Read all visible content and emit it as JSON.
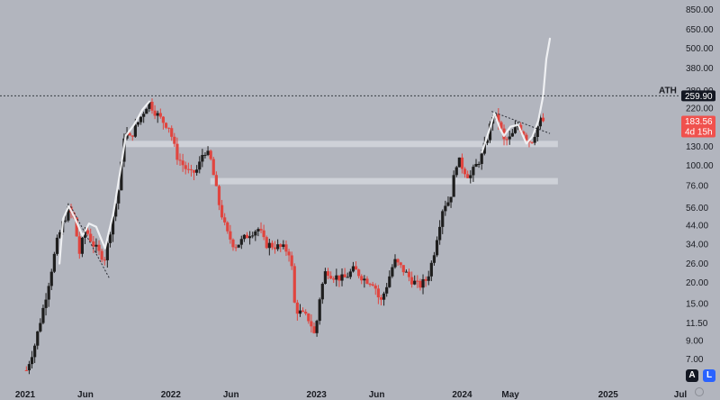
{
  "chart_data": {
    "type": "candlestick",
    "scale": "log",
    "ylim": [
      5.5,
      900
    ],
    "y_ticks": [
      "850.00",
      "650.00",
      "500.00",
      "380.00",
      "280.00",
      "220.00",
      "170.00",
      "130.00",
      "100.00",
      "76.00",
      "56.00",
      "44.00",
      "34.00",
      "26.00",
      "20.00",
      "15.00",
      "11.50",
      "9.00",
      "7.00"
    ],
    "x_ticks": [
      "2021",
      "Jun",
      "2022",
      "Jun",
      "2023",
      "Jun",
      "2024",
      "May",
      "2025",
      "Jul"
    ],
    "ath_label": "ATH",
    "ath_price": "259.90",
    "current_price": "183.56",
    "countdown": "4d 15h",
    "colors": {
      "up": "#1e1e1e",
      "down": "#e0453f",
      "background": "#b2b5be",
      "zone": "#ced1d8",
      "projection": "#f2f3f5",
      "price_tag": "#f0514d"
    },
    "ohlc_path": [
      [
        "2021-01-04",
        6.0
      ],
      [
        "2021-01-25",
        8.5
      ],
      [
        "2021-02-15",
        14
      ],
      [
        "2021-03-01",
        20
      ],
      [
        "2021-03-22",
        35
      ],
      [
        "2021-04-05",
        45
      ],
      [
        "2021-04-20",
        55
      ],
      [
        "2021-05-03",
        48
      ],
      [
        "2021-05-17",
        30
      ],
      [
        "2021-06-01",
        42
      ],
      [
        "2021-06-20",
        34
      ],
      [
        "2021-07-05",
        30
      ],
      [
        "2021-07-20",
        28
      ],
      [
        "2021-08-05",
        45
      ],
      [
        "2021-08-25",
        75
      ],
      [
        "2021-09-07",
        160
      ],
      [
        "2021-09-20",
        145
      ],
      [
        "2021-10-05",
        170
      ],
      [
        "2021-10-25",
        210
      ],
      [
        "2021-11-06",
        240
      ],
      [
        "2021-11-25",
        205
      ],
      [
        "2021-12-10",
        185
      ],
      [
        "2021-12-28",
        170
      ],
      [
        "2022-01-15",
        115
      ],
      [
        "2022-02-01",
        100
      ],
      [
        "2022-02-20",
        88
      ],
      [
        "2022-03-10",
        95
      ],
      [
        "2022-03-25",
        125
      ],
      [
        "2022-04-10",
        110
      ],
      [
        "2022-05-01",
        60
      ],
      [
        "2022-05-20",
        40
      ],
      [
        "2022-06-10",
        33
      ],
      [
        "2022-06-25",
        35
      ],
      [
        "2022-07-20",
        40
      ],
      [
        "2022-08-10",
        42
      ],
      [
        "2022-08-25",
        34
      ],
      [
        "2022-09-20",
        33
      ],
      [
        "2022-10-10",
        32
      ],
      [
        "2022-10-28",
        30
      ],
      [
        "2022-11-08",
        14
      ],
      [
        "2022-11-25",
        13
      ],
      [
        "2022-12-15",
        12
      ],
      [
        "2022-12-28",
        9.5
      ],
      [
        "2023-01-10",
        17
      ],
      [
        "2023-01-25",
        24
      ],
      [
        "2023-02-10",
        22
      ],
      [
        "2023-03-10",
        21
      ],
      [
        "2023-04-05",
        24
      ],
      [
        "2023-05-01",
        21
      ],
      [
        "2023-05-25",
        20
      ],
      [
        "2023-06-10",
        15
      ],
      [
        "2023-06-25",
        19
      ],
      [
        "2023-07-15",
        27
      ],
      [
        "2023-08-05",
        24
      ],
      [
        "2023-08-25",
        21
      ],
      [
        "2023-09-15",
        19
      ],
      [
        "2023-10-05",
        21
      ],
      [
        "2023-10-20",
        28
      ],
      [
        "2023-11-01",
        40
      ],
      [
        "2023-11-15",
        58
      ],
      [
        "2023-12-01",
        62
      ],
      [
        "2023-12-20",
        110
      ],
      [
        "2024-01-05",
        95
      ],
      [
        "2024-01-20",
        85
      ],
      [
        "2024-02-05",
        100
      ],
      [
        "2024-02-20",
        115
      ],
      [
        "2024-03-05",
        150
      ],
      [
        "2024-03-18",
        200
      ],
      [
        "2024-04-01",
        185
      ],
      [
        "2024-04-15",
        140
      ],
      [
        "2024-05-01",
        145
      ],
      [
        "2024-05-20",
        175
      ],
      [
        "2024-06-01",
        160
      ],
      [
        "2024-06-15",
        140
      ],
      [
        "2024-06-25",
        142
      ],
      [
        "2024-07-05",
        165
      ],
      [
        "2024-07-15",
        185
      ],
      [
        "2024-07-22",
        183.56
      ]
    ],
    "horizontal_zones": [
      {
        "price": 135,
        "from": "2021-09-07",
        "to": "2024-08-28"
      },
      {
        "price": 81,
        "from": "2022-04-10",
        "to": "2024-08-28"
      }
    ],
    "annotations": {
      "projection_curve": [
        [
          "2021-03-28",
          26
        ],
        [
          "2021-04-06",
          48
        ],
        [
          "2021-04-20",
          57
        ],
        [
          "2021-05-03",
          50
        ],
        [
          "2021-05-25",
          38
        ],
        [
          "2021-06-10",
          45
        ],
        [
          "2021-06-28",
          43
        ],
        [
          "2021-07-20",
          32
        ],
        [
          "2021-08-10",
          52
        ],
        [
          "2021-08-28",
          95
        ],
        [
          "2021-09-10",
          150
        ],
        [
          "2021-10-01",
          175
        ],
        [
          "2021-10-22",
          215
        ],
        [
          "2021-11-08",
          240
        ],
        [
          "2024-02-20",
          120
        ],
        [
          "2024-03-10",
          165
        ],
        [
          "2024-03-22",
          205
        ],
        [
          "2024-04-05",
          165
        ],
        [
          "2024-04-15",
          150
        ],
        [
          "2024-05-01",
          170
        ],
        [
          "2024-05-20",
          175
        ],
        [
          "2024-06-10",
          135
        ],
        [
          "2024-06-25",
          148
        ],
        [
          "2024-07-10",
          185
        ],
        [
          "2024-07-22",
          260
        ],
        [
          "2024-07-30",
          430
        ],
        [
          "2024-08-08",
          570
        ]
      ],
      "trendlines": [
        [
          [
            "2021-04-25",
            57
          ],
          [
            "2021-08-01",
            21
          ]
        ],
        [
          [
            "2024-03-15",
            210
          ],
          [
            "2024-08-08",
            155
          ]
        ]
      ]
    }
  },
  "toolbar": {
    "a_label": "A",
    "l_label": "L"
  }
}
